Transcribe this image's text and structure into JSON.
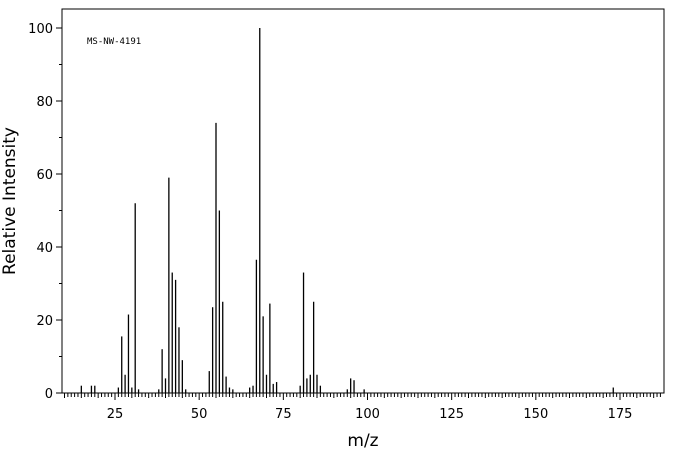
{
  "chart_data": {
    "type": "bar",
    "title": "",
    "annotation": "MS-NW-4191",
    "xlabel": "m/z",
    "ylabel": "Relative Intensity",
    "xlim": [
      10,
      187
    ],
    "ylim": [
      0,
      105
    ],
    "xticks": [
      25,
      50,
      75,
      100,
      125,
      150,
      175
    ],
    "yticks": [
      0,
      20,
      40,
      60,
      80,
      100
    ],
    "grid": false,
    "peaks": {
      "x": [
        15,
        18,
        19,
        26,
        27,
        28,
        29,
        30,
        31,
        32,
        38,
        39,
        40,
        41,
        42,
        43,
        44,
        45,
        46,
        53,
        54,
        55,
        56,
        57,
        58,
        59,
        60,
        65,
        66,
        67,
        68,
        69,
        70,
        71,
        72,
        73,
        80,
        81,
        82,
        83,
        84,
        85,
        86,
        94,
        95,
        96,
        99,
        173
      ],
      "values": [
        2,
        2,
        2,
        1.5,
        15.5,
        5,
        21.5,
        1.5,
        52,
        1,
        1,
        12,
        4,
        59,
        33,
        31,
        18,
        9,
        1,
        6,
        23.5,
        74,
        50,
        25,
        4.5,
        1.5,
        1,
        1.5,
        2,
        36.5,
        100,
        21,
        5,
        24.5,
        2.5,
        3,
        2,
        33,
        4,
        5,
        25,
        5,
        2,
        1,
        4,
        3.5,
        1,
        1.5
      ]
    }
  }
}
